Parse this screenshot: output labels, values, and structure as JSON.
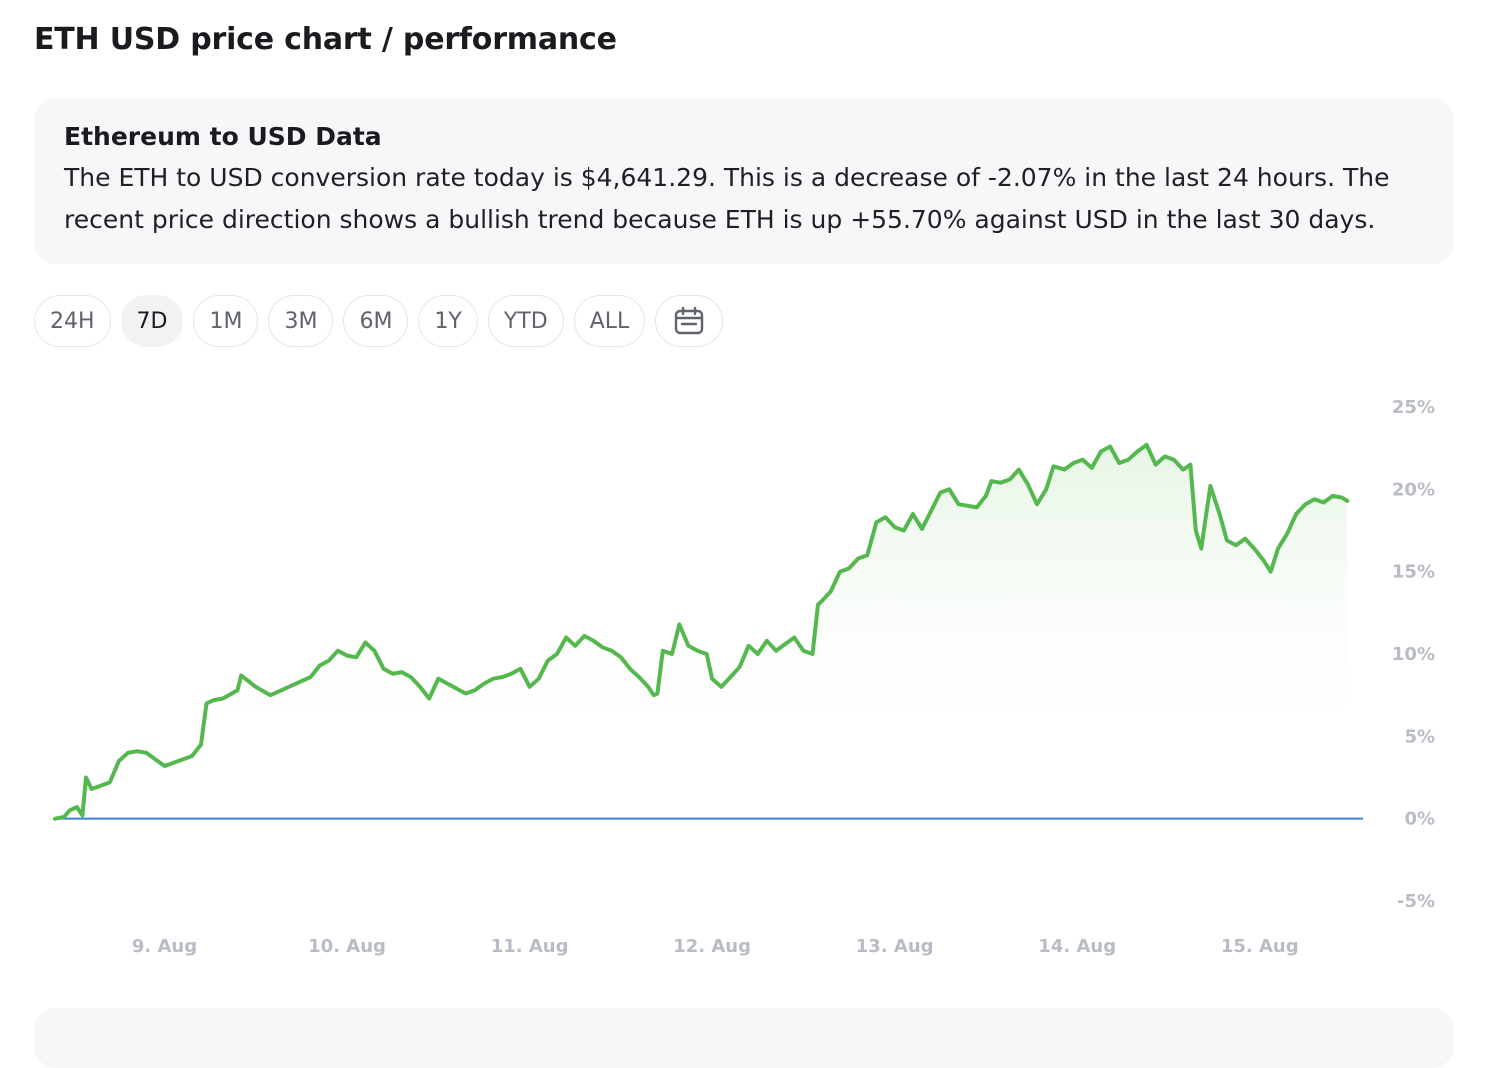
{
  "page": {
    "title": "ETH USD price chart / performance"
  },
  "info": {
    "heading": "Ethereum to USD Data",
    "text": "The ETH to USD conversion rate today is $4,641.29. This is a decrease of -2.07% in the last 24 hours. The recent price direction shows a bullish trend because ETH is up +55.70% against USD in the last 30 days."
  },
  "range_buttons": [
    {
      "label": "24H",
      "active": false
    },
    {
      "label": "7D",
      "active": true
    },
    {
      "label": "1M",
      "active": false
    },
    {
      "label": "3M",
      "active": false
    },
    {
      "label": "6M",
      "active": false
    },
    {
      "label": "1Y",
      "active": false
    },
    {
      "label": "YTD",
      "active": false
    },
    {
      "label": "ALL",
      "active": false
    }
  ],
  "icons": {
    "calendar": "calendar-icon"
  },
  "colors": {
    "line": "#55b84f",
    "baseline": "#3f7fe0",
    "fill_top": "#e7f5e5",
    "tick_text": "#b8bcc4"
  },
  "chart_data": {
    "type": "area",
    "title": "",
    "xlabel": "",
    "ylabel": "",
    "x_unit": "days since series start (Aug 8, ~04:00)",
    "y_unit": "percent change",
    "ylim": [
      -5,
      25
    ],
    "xlim": [
      0,
      7.1
    ],
    "y_ticks": [
      -5,
      0,
      5,
      10,
      15,
      20,
      25
    ],
    "y_tick_labels": [
      "-5%",
      "0%",
      "5%",
      "10%",
      "15%",
      "20%",
      "25%"
    ],
    "x_tick_labels": [
      "9. Aug",
      "10. Aug",
      "11. Aug",
      "12. Aug",
      "13. Aug",
      "14. Aug",
      "15. Aug"
    ],
    "x_ticks": [
      0.6,
      1.6,
      2.6,
      3.6,
      4.6,
      5.6,
      6.6
    ],
    "grid": false,
    "legend": "none",
    "baseline_value": 0,
    "series": [
      {
        "points": [
          [
            0.0,
            0.0
          ],
          [
            0.05,
            0.1
          ],
          [
            0.08,
            0.5
          ],
          [
            0.12,
            0.7
          ],
          [
            0.15,
            0.2
          ],
          [
            0.17,
            2.5
          ],
          [
            0.2,
            1.8
          ],
          [
            0.25,
            2.0
          ],
          [
            0.3,
            2.2
          ],
          [
            0.35,
            3.5
          ],
          [
            0.4,
            4.0
          ],
          [
            0.45,
            4.1
          ],
          [
            0.5,
            4.0
          ],
          [
            0.55,
            3.6
          ],
          [
            0.6,
            3.2
          ],
          [
            0.65,
            3.4
          ],
          [
            0.7,
            3.6
          ],
          [
            0.75,
            3.8
          ],
          [
            0.8,
            4.5
          ],
          [
            0.83,
            7.0
          ],
          [
            0.87,
            7.2
          ],
          [
            0.92,
            7.3
          ],
          [
            1.0,
            7.8
          ],
          [
            1.02,
            8.7
          ],
          [
            1.1,
            8.0
          ],
          [
            1.18,
            7.5
          ],
          [
            1.22,
            7.7
          ],
          [
            1.3,
            8.1
          ],
          [
            1.4,
            8.6
          ],
          [
            1.45,
            9.3
          ],
          [
            1.5,
            9.6
          ],
          [
            1.55,
            10.2
          ],
          [
            1.6,
            9.9
          ],
          [
            1.65,
            9.8
          ],
          [
            1.7,
            10.7
          ],
          [
            1.75,
            10.2
          ],
          [
            1.8,
            9.1
          ],
          [
            1.85,
            8.8
          ],
          [
            1.9,
            8.9
          ],
          [
            1.95,
            8.6
          ],
          [
            2.0,
            8.0
          ],
          [
            2.05,
            7.3
          ],
          [
            2.1,
            8.5
          ],
          [
            2.15,
            8.2
          ],
          [
            2.2,
            7.9
          ],
          [
            2.25,
            7.6
          ],
          [
            2.3,
            7.8
          ],
          [
            2.35,
            8.2
          ],
          [
            2.4,
            8.5
          ],
          [
            2.45,
            8.6
          ],
          [
            2.5,
            8.8
          ],
          [
            2.55,
            9.1
          ],
          [
            2.6,
            8.0
          ],
          [
            2.65,
            8.5
          ],
          [
            2.7,
            9.6
          ],
          [
            2.75,
            10.0
          ],
          [
            2.8,
            11.0
          ],
          [
            2.85,
            10.5
          ],
          [
            2.9,
            11.1
          ],
          [
            2.95,
            10.8
          ],
          [
            3.0,
            10.4
          ],
          [
            3.05,
            10.2
          ],
          [
            3.1,
            9.8
          ],
          [
            3.15,
            9.1
          ],
          [
            3.2,
            8.6
          ],
          [
            3.25,
            8.0
          ],
          [
            3.28,
            7.5
          ],
          [
            3.3,
            7.6
          ],
          [
            3.33,
            10.2
          ],
          [
            3.38,
            10.0
          ],
          [
            3.42,
            11.8
          ],
          [
            3.47,
            10.5
          ],
          [
            3.52,
            10.2
          ],
          [
            3.57,
            10.0
          ],
          [
            3.6,
            8.5
          ],
          [
            3.65,
            8.0
          ],
          [
            3.7,
            8.6
          ],
          [
            3.75,
            9.2
          ],
          [
            3.8,
            10.5
          ],
          [
            3.85,
            10.0
          ],
          [
            3.9,
            10.8
          ],
          [
            3.95,
            10.2
          ],
          [
            4.0,
            10.6
          ],
          [
            4.05,
            11.0
          ],
          [
            4.1,
            10.2
          ],
          [
            4.15,
            10.0
          ],
          [
            4.18,
            13.0
          ],
          [
            4.2,
            13.2
          ],
          [
            4.25,
            13.8
          ],
          [
            4.3,
            15.0
          ],
          [
            4.35,
            15.2
          ],
          [
            4.4,
            15.8
          ],
          [
            4.45,
            16.0
          ],
          [
            4.5,
            18.0
          ],
          [
            4.55,
            18.3
          ],
          [
            4.6,
            17.7
          ],
          [
            4.65,
            17.5
          ],
          [
            4.7,
            18.5
          ],
          [
            4.75,
            17.6
          ],
          [
            4.8,
            18.7
          ],
          [
            4.85,
            19.8
          ],
          [
            4.9,
            20.0
          ],
          [
            4.95,
            19.1
          ],
          [
            5.0,
            19.0
          ],
          [
            5.05,
            18.9
          ],
          [
            5.1,
            19.6
          ],
          [
            5.13,
            20.5
          ],
          [
            5.18,
            20.4
          ],
          [
            5.23,
            20.6
          ],
          [
            5.28,
            21.2
          ],
          [
            5.33,
            20.3
          ],
          [
            5.38,
            19.1
          ],
          [
            5.43,
            20.0
          ],
          [
            5.47,
            21.4
          ],
          [
            5.53,
            21.2
          ],
          [
            5.58,
            21.6
          ],
          [
            5.63,
            21.8
          ],
          [
            5.68,
            21.3
          ],
          [
            5.73,
            22.3
          ],
          [
            5.78,
            22.6
          ],
          [
            5.83,
            21.6
          ],
          [
            5.88,
            21.8
          ],
          [
            5.93,
            22.3
          ],
          [
            5.98,
            22.7
          ],
          [
            6.03,
            21.5
          ],
          [
            6.08,
            22.0
          ],
          [
            6.13,
            21.8
          ],
          [
            6.18,
            21.2
          ],
          [
            6.22,
            21.5
          ],
          [
            6.25,
            17.5
          ],
          [
            6.28,
            16.4
          ],
          [
            6.3,
            18.0
          ],
          [
            6.33,
            20.2
          ],
          [
            6.38,
            18.5
          ],
          [
            6.42,
            16.9
          ],
          [
            6.47,
            16.6
          ],
          [
            6.52,
            17.0
          ],
          [
            6.57,
            16.4
          ],
          [
            6.62,
            15.7
          ],
          [
            6.66,
            15.0
          ],
          [
            6.7,
            16.4
          ],
          [
            6.75,
            17.3
          ],
          [
            6.8,
            18.5
          ],
          [
            6.85,
            19.1
          ],
          [
            6.9,
            19.4
          ],
          [
            6.95,
            19.2
          ],
          [
            7.0,
            19.6
          ],
          [
            7.05,
            19.5
          ],
          [
            7.08,
            19.3
          ]
        ]
      }
    ]
  }
}
